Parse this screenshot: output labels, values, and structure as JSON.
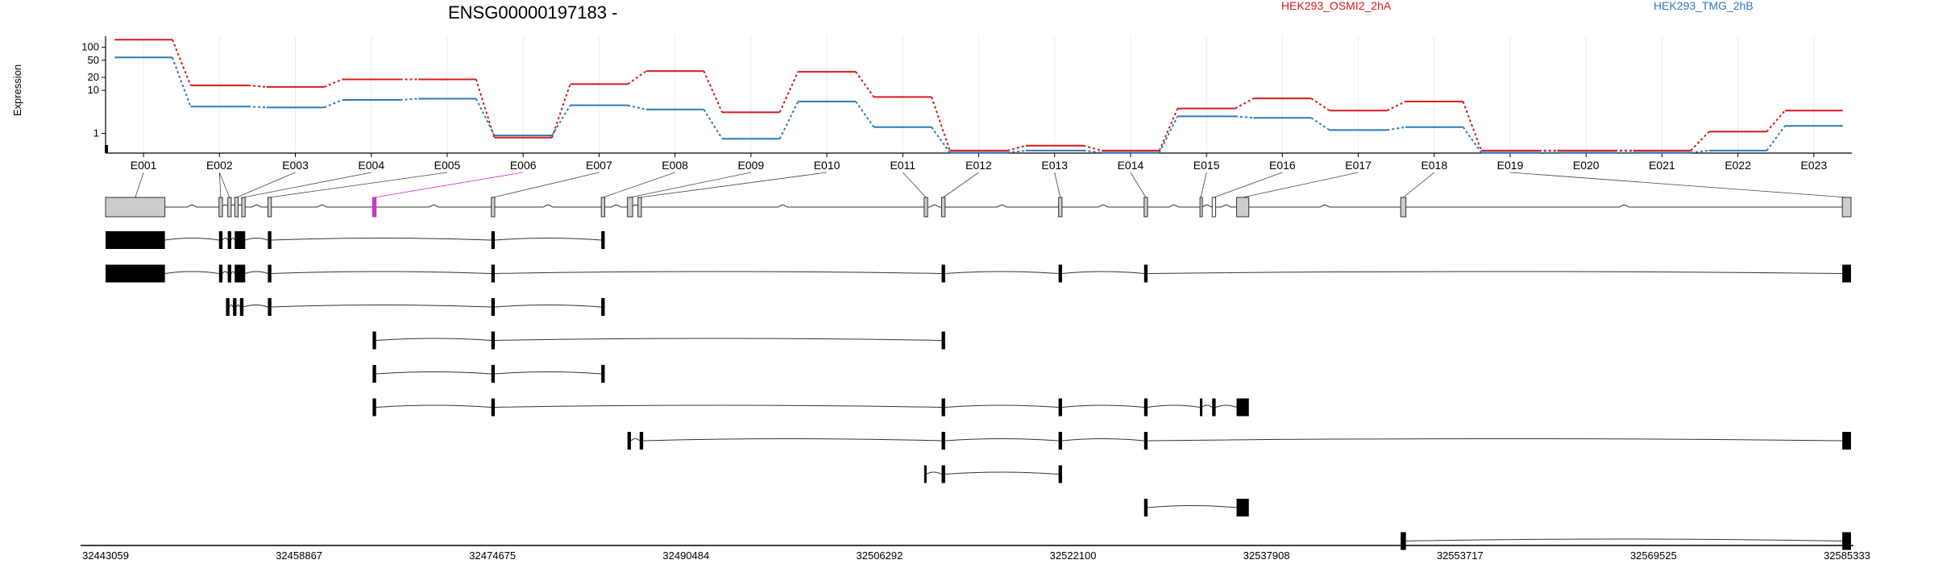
{
  "title": "ENSG00000197183 -",
  "ylabel": "Expression",
  "legend": [
    {
      "name": "HEK293_OSMI2_2hA",
      "color": "#d7191c"
    },
    {
      "name": "HEK293_TMG_2hB",
      "color": "#2c7bb6"
    }
  ],
  "colors": {
    "series_a": "#d7191c",
    "series_b": "#2c7bb6",
    "highlight": "#cc33cc",
    "exon_gray": "#cccccc",
    "exon_black": "#000000"
  },
  "coordinate_labels": [
    "32443059",
    "32458867",
    "32474675",
    "32490484",
    "32506292",
    "32522100",
    "32537908",
    "32553717",
    "32569525",
    "32585333"
  ],
  "chart_data": {
    "type": "line",
    "scale": "log",
    "y_ticks": [
      "1",
      "10",
      "20",
      "50",
      "100"
    ],
    "y_tick_values": [
      1,
      10,
      20,
      50,
      100
    ],
    "ylim": [
      0.35,
      180
    ],
    "categories": [
      "E001",
      "E002",
      "E003",
      "E004",
      "E005",
      "E006",
      "E007",
      "E008",
      "E009",
      "E010",
      "E011",
      "E012",
      "E013",
      "E014",
      "E015",
      "E016",
      "E017",
      "E018",
      "E019",
      "E020",
      "E021",
      "E022",
      "E023"
    ],
    "series": [
      {
        "name": "HEK293_OSMI2_2hA",
        "color": "#d7191c",
        "values": [
          150,
          13,
          12,
          18,
          18,
          0.8,
          14,
          28,
          3.1,
          27,
          7,
          0.4,
          0.52,
          0.4,
          3.8,
          6.5,
          3.4,
          5.5,
          0.4,
          0.4,
          0.4,
          1.1,
          3.4
        ]
      },
      {
        "name": "HEK293_TMG_2hB",
        "color": "#2c7bb6",
        "values": [
          58,
          4.2,
          4.0,
          6.0,
          6.4,
          0.9,
          4.5,
          3.6,
          0.75,
          5.5,
          1.4,
          0.36,
          0.4,
          0.36,
          2.5,
          2.3,
          1.2,
          1.4,
          0.36,
          0.36,
          0.36,
          0.4,
          1.5
        ]
      }
    ]
  }
}
